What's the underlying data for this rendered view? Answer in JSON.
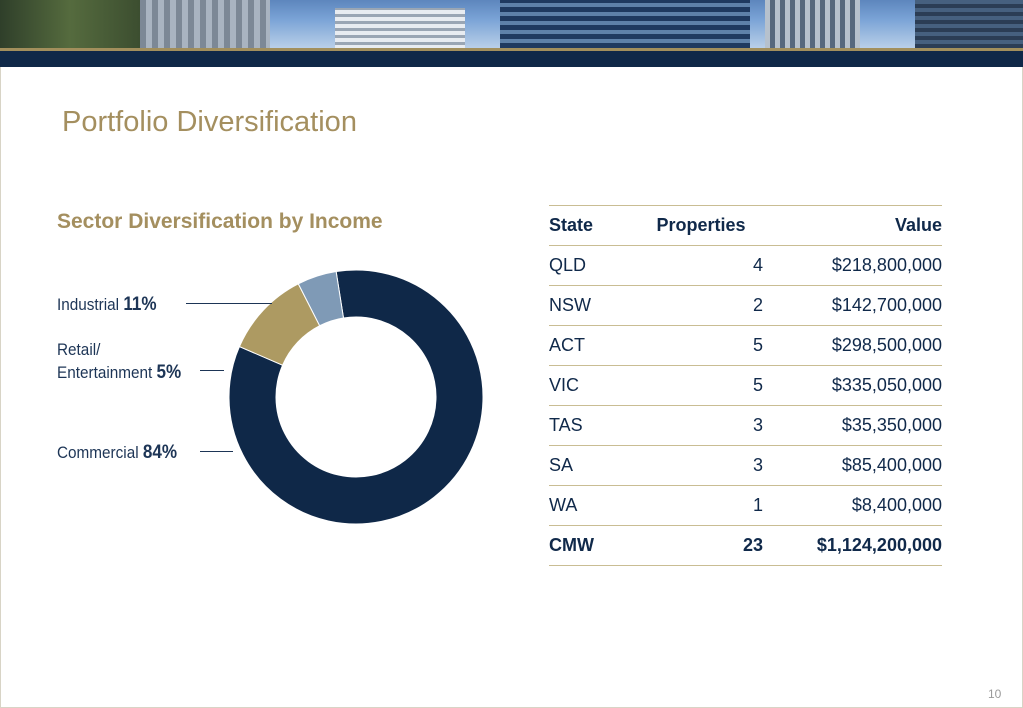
{
  "page": {
    "title": "Portfolio Diversification",
    "page_number": "10"
  },
  "colors": {
    "navy": "#0f2848",
    "gold": "#a48f5f",
    "steel_blue": "#7f9ab6"
  },
  "chart_data": {
    "type": "pie",
    "title": "Sector Diversification by Income",
    "donut": true,
    "categories": [
      "Industrial",
      "Retail/ Entertainment",
      "Commercial"
    ],
    "values": [
      11,
      5,
      84
    ],
    "labels": [
      "Industrial",
      "Retail/",
      "Entertainment",
      "Commercial"
    ],
    "value_labels": [
      "11%",
      "5%",
      "84%"
    ],
    "colors": [
      "#ad9a62",
      "#7f9ab6",
      "#0f2848"
    ]
  },
  "table": {
    "headers": [
      "State",
      "Properties",
      "Value"
    ],
    "rows": [
      [
        "QLD",
        "4",
        "$218,800,000"
      ],
      [
        "NSW",
        "2",
        "$142,700,000"
      ],
      [
        "ACT",
        "5",
        "$298,500,000"
      ],
      [
        "VIC",
        "5",
        "$335,050,000"
      ],
      [
        "TAS",
        "3",
        "$35,350,000"
      ],
      [
        "SA",
        "3",
        "$85,400,000"
      ],
      [
        "WA",
        "1",
        "$8,400,000"
      ]
    ],
    "total": [
      "CMW",
      "23",
      "$1,124,200,000"
    ]
  }
}
